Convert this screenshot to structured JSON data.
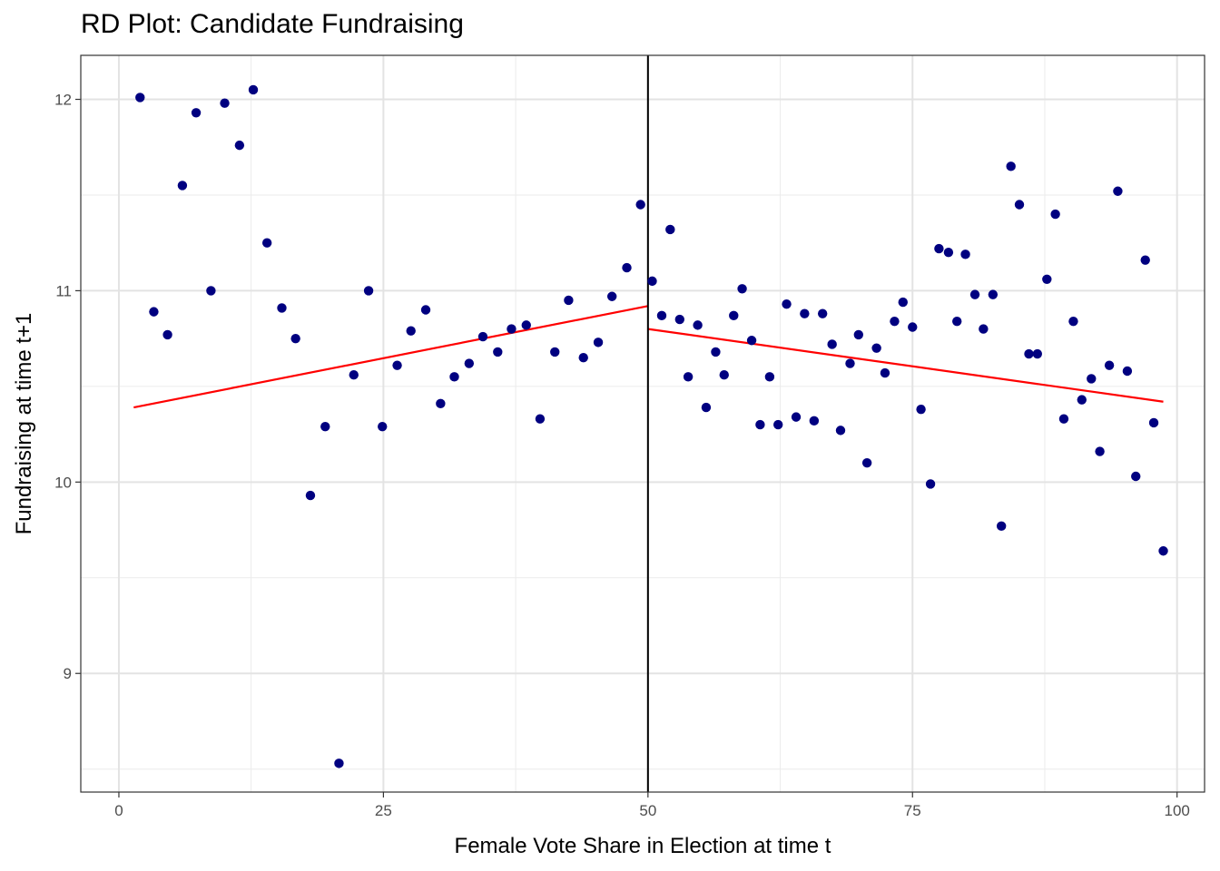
{
  "chart_data": {
    "type": "scatter",
    "title": "RD Plot: Candidate Fundraising",
    "xlabel": "Female Vote Share in Election at time t",
    "ylabel": "Fundraising at time t+1",
    "xlim": [
      -3.6,
      102.6
    ],
    "ylim": [
      8.38,
      12.23
    ],
    "x_ticks": [
      0,
      25,
      50,
      75,
      100
    ],
    "y_ticks": [
      9,
      10,
      11,
      12
    ],
    "grid": true,
    "cutoff": 50,
    "point_color": "#000080",
    "fit_color": "#ff0000",
    "cutoff_color": "#000000",
    "points": [
      {
        "x": 2.0,
        "y": 12.01
      },
      {
        "x": 3.3,
        "y": 10.89
      },
      {
        "x": 4.6,
        "y": 10.77
      },
      {
        "x": 6.0,
        "y": 11.55
      },
      {
        "x": 7.3,
        "y": 11.93
      },
      {
        "x": 8.7,
        "y": 11.0
      },
      {
        "x": 10.0,
        "y": 11.98
      },
      {
        "x": 11.4,
        "y": 11.76
      },
      {
        "x": 12.7,
        "y": 12.05
      },
      {
        "x": 14.0,
        "y": 11.25
      },
      {
        "x": 15.4,
        "y": 10.91
      },
      {
        "x": 16.7,
        "y": 10.75
      },
      {
        "x": 18.1,
        "y": 9.93
      },
      {
        "x": 19.5,
        "y": 10.29
      },
      {
        "x": 20.8,
        "y": 8.53
      },
      {
        "x": 22.2,
        "y": 10.56
      },
      {
        "x": 23.6,
        "y": 11.0
      },
      {
        "x": 24.9,
        "y": 10.29
      },
      {
        "x": 26.3,
        "y": 10.61
      },
      {
        "x": 27.6,
        "y": 10.79
      },
      {
        "x": 29.0,
        "y": 10.9
      },
      {
        "x": 30.4,
        "y": 10.41
      },
      {
        "x": 31.7,
        "y": 10.55
      },
      {
        "x": 33.1,
        "y": 10.62
      },
      {
        "x": 34.4,
        "y": 10.76
      },
      {
        "x": 35.8,
        "y": 10.68
      },
      {
        "x": 37.1,
        "y": 10.8
      },
      {
        "x": 38.5,
        "y": 10.82
      },
      {
        "x": 39.8,
        "y": 10.33
      },
      {
        "x": 41.2,
        "y": 10.68
      },
      {
        "x": 42.5,
        "y": 10.95
      },
      {
        "x": 43.9,
        "y": 10.65
      },
      {
        "x": 45.3,
        "y": 10.73
      },
      {
        "x": 46.6,
        "y": 10.97
      },
      {
        "x": 48.0,
        "y": 11.12
      },
      {
        "x": 49.3,
        "y": 11.45
      },
      {
        "x": 50.4,
        "y": 11.05
      },
      {
        "x": 51.3,
        "y": 10.87
      },
      {
        "x": 52.1,
        "y": 11.32
      },
      {
        "x": 53.0,
        "y": 10.85
      },
      {
        "x": 53.8,
        "y": 10.55
      },
      {
        "x": 54.7,
        "y": 10.82
      },
      {
        "x": 55.5,
        "y": 10.39
      },
      {
        "x": 56.4,
        "y": 10.68
      },
      {
        "x": 57.2,
        "y": 10.56
      },
      {
        "x": 58.1,
        "y": 10.87
      },
      {
        "x": 58.9,
        "y": 11.01
      },
      {
        "x": 59.8,
        "y": 10.74
      },
      {
        "x": 60.6,
        "y": 10.3
      },
      {
        "x": 61.5,
        "y": 10.55
      },
      {
        "x": 62.3,
        "y": 10.3
      },
      {
        "x": 63.1,
        "y": 10.93
      },
      {
        "x": 64.0,
        "y": 10.34
      },
      {
        "x": 64.8,
        "y": 10.88
      },
      {
        "x": 65.7,
        "y": 10.32
      },
      {
        "x": 66.5,
        "y": 10.88
      },
      {
        "x": 67.4,
        "y": 10.72
      },
      {
        "x": 68.2,
        "y": 10.27
      },
      {
        "x": 69.1,
        "y": 10.62
      },
      {
        "x": 69.9,
        "y": 10.77
      },
      {
        "x": 70.7,
        "y": 10.1
      },
      {
        "x": 71.6,
        "y": 10.7
      },
      {
        "x": 72.4,
        "y": 10.57
      },
      {
        "x": 73.3,
        "y": 10.84
      },
      {
        "x": 74.1,
        "y": 10.94
      },
      {
        "x": 75.0,
        "y": 10.81
      },
      {
        "x": 75.8,
        "y": 10.38
      },
      {
        "x": 76.7,
        "y": 9.99
      },
      {
        "x": 77.5,
        "y": 11.22
      },
      {
        "x": 78.4,
        "y": 11.2
      },
      {
        "x": 79.2,
        "y": 10.84
      },
      {
        "x": 80.0,
        "y": 11.19
      },
      {
        "x": 80.9,
        "y": 10.98
      },
      {
        "x": 81.7,
        "y": 10.8
      },
      {
        "x": 82.6,
        "y": 10.98
      },
      {
        "x": 83.4,
        "y": 9.77
      },
      {
        "x": 84.3,
        "y": 11.65
      },
      {
        "x": 85.1,
        "y": 11.45
      },
      {
        "x": 86.0,
        "y": 10.67
      },
      {
        "x": 86.8,
        "y": 10.67
      },
      {
        "x": 87.7,
        "y": 11.06
      },
      {
        "x": 88.5,
        "y": 11.4
      },
      {
        "x": 89.3,
        "y": 10.33
      },
      {
        "x": 90.2,
        "y": 10.84
      },
      {
        "x": 91.0,
        "y": 10.43
      },
      {
        "x": 91.9,
        "y": 10.54
      },
      {
        "x": 92.7,
        "y": 10.16
      },
      {
        "x": 93.6,
        "y": 10.61
      },
      {
        "x": 94.4,
        "y": 11.52
      },
      {
        "x": 95.3,
        "y": 10.58
      },
      {
        "x": 96.1,
        "y": 10.03
      },
      {
        "x": 97.0,
        "y": 11.16
      },
      {
        "x": 97.8,
        "y": 10.31
      },
      {
        "x": 98.7,
        "y": 9.64
      }
    ],
    "fit_lines": [
      {
        "x": [
          1.4,
          50.0
        ],
        "y": [
          10.39,
          10.92
        ]
      },
      {
        "x": [
          50.0,
          98.7
        ],
        "y": [
          10.8,
          10.42
        ]
      }
    ]
  }
}
